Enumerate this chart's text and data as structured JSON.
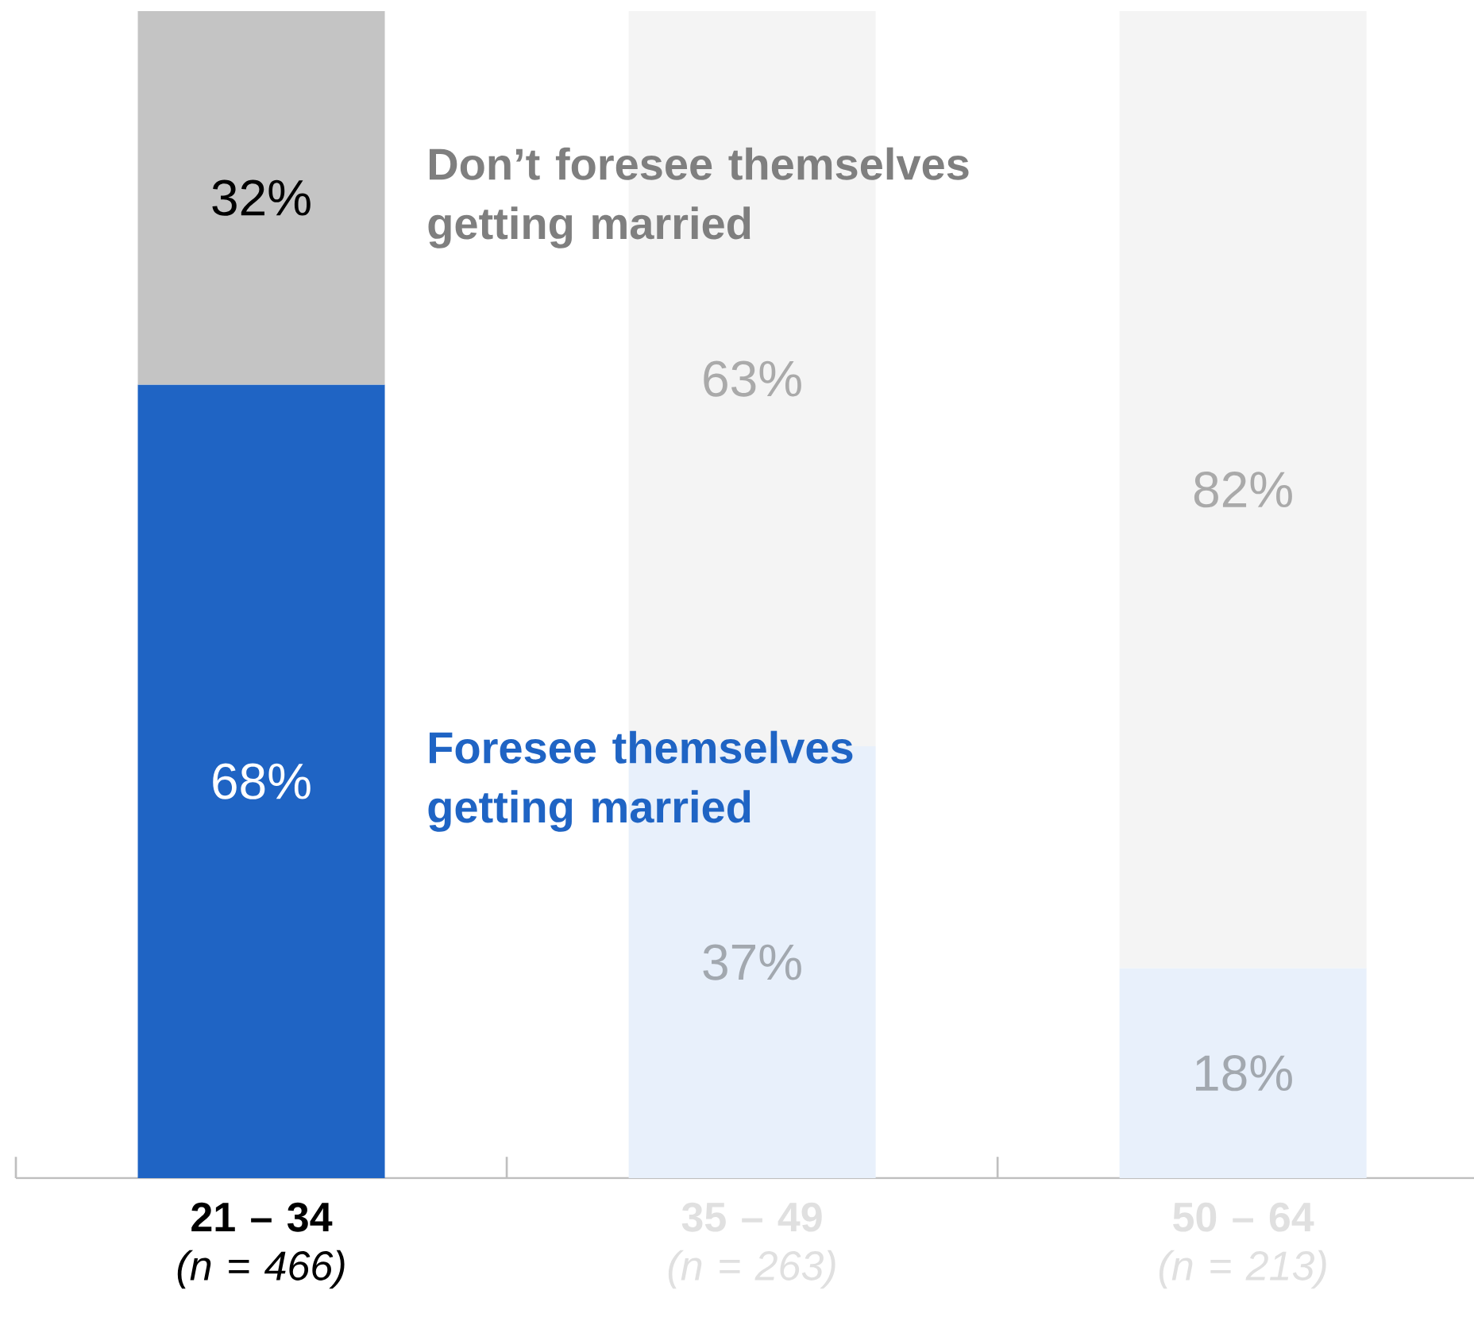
{
  "chart_data": {
    "type": "bar",
    "stacked": true,
    "categories": [
      "**21 – 34** *(n = 466)*",
      "**35 – 49** *(n = 263)*",
      "**50 – 64** *(n = 213)*"
    ],
    "series": [
      {
        "name": "Foresee themselves getting married",
        "values": [
          68,
          37,
          18
        ],
        "value_labels": [
          "68%",
          "37%",
          "18%"
        ],
        "colors": [
          "#1f64c4",
          "#e8f0fb",
          "#e8f0fb"
        ]
      },
      {
        "name": "Don’t foresee themselves getting married",
        "values": [
          32,
          63,
          82
        ],
        "value_labels": [
          "32%",
          "63%",
          "82%"
        ],
        "colors": [
          "#c4c4c4",
          "#f4f4f4",
          "#f4f4f4"
        ]
      }
    ],
    "ylim": [
      0,
      100
    ],
    "tick_labels": "x"
  }
}
